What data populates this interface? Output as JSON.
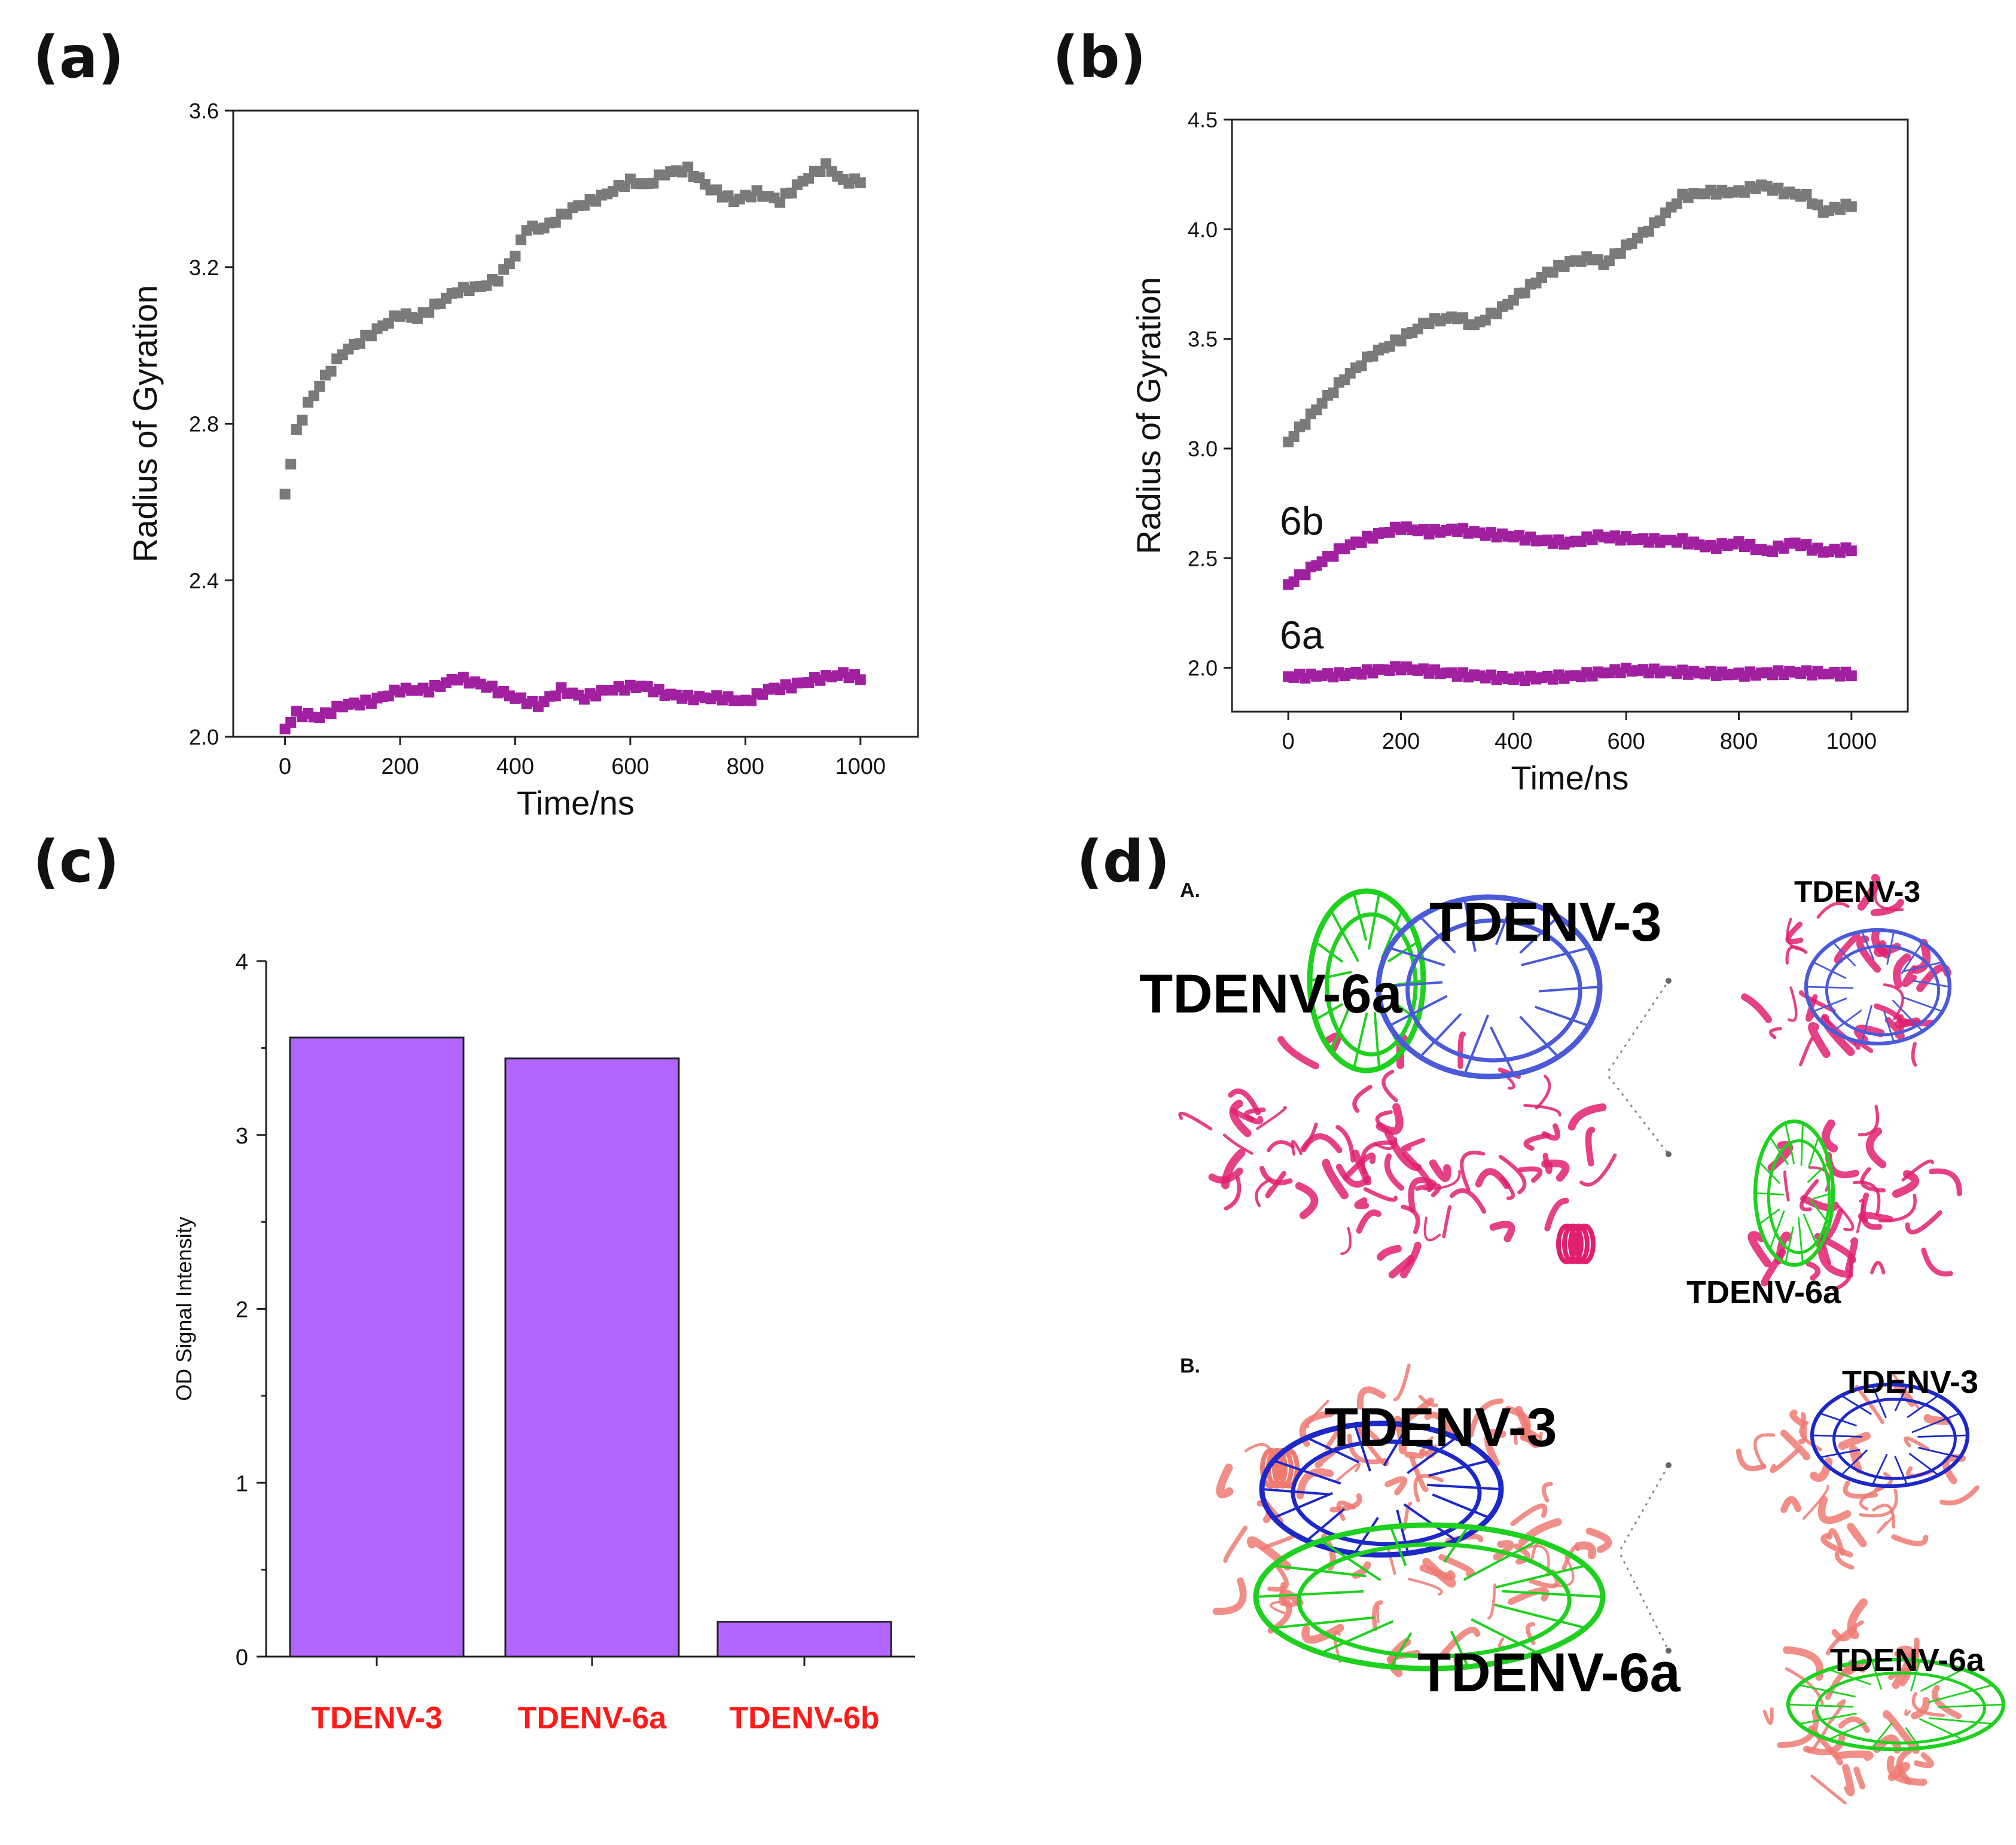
{
  "panels": {
    "a": "(a)",
    "b": "(b)",
    "c": "(c)",
    "d": "(d)"
  },
  "chart_data": [
    {
      "id": "a",
      "type": "scatter",
      "title": "",
      "xlabel": "Time/ns",
      "ylabel": "Radius of Gyration",
      "xlim": [
        -90,
        1100
      ],
      "ylim": [
        2.0,
        3.6
      ],
      "xticks": [
        0,
        200,
        400,
        600,
        800,
        1000
      ],
      "yticks": [
        2.0,
        2.4,
        2.8,
        3.2,
        3.6
      ],
      "ytick_labels": [
        "2.0",
        "2.4",
        "2.8",
        "3.2",
        "3.6"
      ],
      "series": [
        {
          "name": "series-gray",
          "color": "#7a7a7a",
          "keypoints": [
            [
              0,
              2.62
            ],
            [
              10,
              2.7
            ],
            [
              20,
              2.78
            ],
            [
              40,
              2.85
            ],
            [
              70,
              2.92
            ],
            [
              100,
              2.98
            ],
            [
              150,
              3.03
            ],
            [
              200,
              3.08
            ],
            [
              230,
              3.07
            ],
            [
              260,
              3.1
            ],
            [
              300,
              3.14
            ],
            [
              340,
              3.15
            ],
            [
              370,
              3.17
            ],
            [
              400,
              3.23
            ],
            [
              420,
              3.3
            ],
            [
              450,
              3.3
            ],
            [
              500,
              3.35
            ],
            [
              550,
              3.38
            ],
            [
              600,
              3.42
            ],
            [
              630,
              3.41
            ],
            [
              660,
              3.44
            ],
            [
              700,
              3.45
            ],
            [
              740,
              3.4
            ],
            [
              780,
              3.37
            ],
            [
              820,
              3.39
            ],
            [
              860,
              3.37
            ],
            [
              900,
              3.42
            ],
            [
              940,
              3.46
            ],
            [
              970,
              3.42
            ],
            [
              1000,
              3.42
            ]
          ]
        },
        {
          "name": "series-magenta",
          "color": "#a020a0",
          "keypoints": [
            [
              0,
              2.02
            ],
            [
              20,
              2.06
            ],
            [
              60,
              2.05
            ],
            [
              100,
              2.08
            ],
            [
              150,
              2.09
            ],
            [
              200,
              2.12
            ],
            [
              250,
              2.12
            ],
            [
              300,
              2.15
            ],
            [
              350,
              2.13
            ],
            [
              400,
              2.1
            ],
            [
              440,
              2.08
            ],
            [
              480,
              2.12
            ],
            [
              520,
              2.1
            ],
            [
              560,
              2.12
            ],
            [
              620,
              2.13
            ],
            [
              660,
              2.11
            ],
            [
              700,
              2.1
            ],
            [
              760,
              2.1
            ],
            [
              800,
              2.09
            ],
            [
              840,
              2.12
            ],
            [
              880,
              2.13
            ],
            [
              930,
              2.15
            ],
            [
              970,
              2.16
            ],
            [
              1000,
              2.15
            ]
          ]
        }
      ]
    },
    {
      "id": "b",
      "type": "scatter",
      "title": "",
      "xlabel": "Time/ns",
      "ylabel": "Radius of Gyration",
      "xlim": [
        -100,
        1100
      ],
      "ylim": [
        1.8,
        4.5
      ],
      "xticks": [
        0,
        200,
        400,
        600,
        800,
        1000
      ],
      "yticks": [
        2.0,
        2.5,
        3.0,
        3.5,
        4.0,
        4.5
      ],
      "ytick_labels": [
        "2.0",
        "2.5",
        "3.0",
        "3.5",
        "4.0",
        "4.5"
      ],
      "annotations": [
        "6b",
        "6a"
      ],
      "series": [
        {
          "name": "series-gray",
          "color": "#7a7a7a",
          "keypoints": [
            [
              0,
              3.03
            ],
            [
              50,
              3.18
            ],
            [
              100,
              3.32
            ],
            [
              150,
              3.43
            ],
            [
              200,
              3.5
            ],
            [
              250,
              3.58
            ],
            [
              300,
              3.6
            ],
            [
              330,
              3.56
            ],
            [
              380,
              3.64
            ],
            [
              420,
              3.72
            ],
            [
              460,
              3.8
            ],
            [
              500,
              3.85
            ],
            [
              540,
              3.87
            ],
            [
              560,
              3.84
            ],
            [
              600,
              3.92
            ],
            [
              650,
              4.02
            ],
            [
              700,
              4.15
            ],
            [
              750,
              4.17
            ],
            [
              800,
              4.17
            ],
            [
              840,
              4.2
            ],
            [
              880,
              4.17
            ],
            [
              920,
              4.15
            ],
            [
              950,
              4.08
            ],
            [
              980,
              4.1
            ],
            [
              1000,
              4.11
            ]
          ]
        },
        {
          "name": "series-6b",
          "color": "#a020a0",
          "keypoints": [
            [
              0,
              2.38
            ],
            [
              50,
              2.47
            ],
            [
              100,
              2.55
            ],
            [
              150,
              2.6
            ],
            [
              200,
              2.64
            ],
            [
              250,
              2.62
            ],
            [
              300,
              2.63
            ],
            [
              350,
              2.61
            ],
            [
              400,
              2.6
            ],
            [
              450,
              2.58
            ],
            [
              500,
              2.57
            ],
            [
              550,
              2.6
            ],
            [
              600,
              2.59
            ],
            [
              650,
              2.58
            ],
            [
              700,
              2.58
            ],
            [
              750,
              2.55
            ],
            [
              800,
              2.57
            ],
            [
              850,
              2.53
            ],
            [
              900,
              2.57
            ],
            [
              950,
              2.53
            ],
            [
              1000,
              2.54
            ]
          ]
        },
        {
          "name": "series-6a",
          "color": "#a020a0",
          "keypoints": [
            [
              0,
              1.96
            ],
            [
              100,
              1.97
            ],
            [
              200,
              2.0
            ],
            [
              300,
              1.97
            ],
            [
              400,
              1.95
            ],
            [
              500,
              1.96
            ],
            [
              600,
              1.99
            ],
            [
              700,
              1.98
            ],
            [
              800,
              1.97
            ],
            [
              900,
              1.98
            ],
            [
              1000,
              1.97
            ]
          ]
        }
      ]
    },
    {
      "id": "c",
      "type": "bar",
      "title": "",
      "xlabel": "",
      "ylabel": "OD Signal Intensity",
      "ylim": [
        0,
        4
      ],
      "yticks": [
        0,
        1,
        2,
        3,
        4
      ],
      "categories": [
        "TDENV-3",
        "TDENV-6a",
        "TDENV-6b"
      ],
      "values": [
        3.56,
        3.44,
        0.2
      ],
      "bar_color": "#b266ff",
      "category_label_color": "#ff1a1a"
    }
  ],
  "panel_d": {
    "section_a": {
      "letter": "A.",
      "main_labels": [
        "TDENV-3",
        "TDENV-6a"
      ],
      "inset_top_label": "TDENV-3",
      "inset_bottom_label": "TDENV-6a"
    },
    "section_b": {
      "letter": "B.",
      "main_labels": [
        "TDENV-3",
        "TDENV-6a"
      ],
      "inset_top_label": "TDENV-3",
      "inset_bottom_label": "TDENV-6a"
    },
    "colors": {
      "protein_a": "#e0206e",
      "protein_b": "#ee7a72",
      "rna_blue_a": "#4a5ad8",
      "rna_blue_b": "#1c28c8",
      "rna_green": "#1ed11e"
    }
  }
}
